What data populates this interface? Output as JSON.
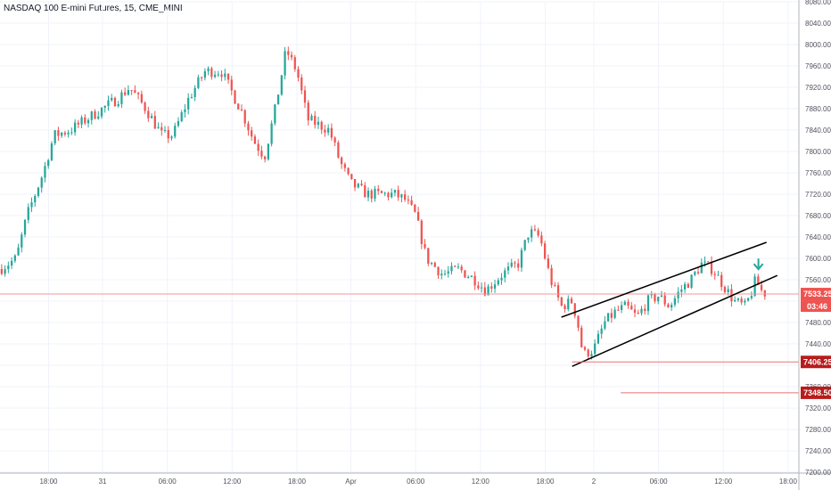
{
  "header": {
    "title": "NASDAQ 100 E-mini Futures, 15, CME_MINI"
  },
  "chart_data": {
    "type": "candlestick",
    "title": "NASDAQ 100 E-mini Futures, 15, CME_MINI",
    "ylim": [
      7200,
      8080
    ],
    "yticks": [
      7200,
      7240,
      7280,
      7320,
      7360,
      7400,
      7440,
      7480,
      7520,
      7560,
      7600,
      7640,
      7680,
      7720,
      7760,
      7800,
      7840,
      7880,
      7920,
      7960,
      8000,
      8040,
      8080
    ],
    "xlim": [
      0,
      148
    ],
    "xticks": [
      {
        "x": 9,
        "label": "18:00"
      },
      {
        "x": 19,
        "label": "31"
      },
      {
        "x": 31,
        "label": "06:00"
      },
      {
        "x": 43,
        "label": "12:00"
      },
      {
        "x": 55,
        "label": "18:00"
      },
      {
        "x": 65,
        "label": "Apr"
      },
      {
        "x": 77,
        "label": "06:00"
      },
      {
        "x": 89,
        "label": "12:00"
      },
      {
        "x": 101,
        "label": "18:00"
      },
      {
        "x": 110,
        "label": "2"
      },
      {
        "x": 122,
        "label": "06:00"
      },
      {
        "x": 134,
        "label": "12:00"
      },
      {
        "x": 146,
        "label": "18:00"
      }
    ],
    "path": [
      [
        0,
        7580
      ],
      [
        3,
        7600
      ],
      [
        5,
        7680
      ],
      [
        8,
        7760
      ],
      [
        10,
        7830
      ],
      [
        13,
        7840
      ],
      [
        16,
        7860
      ],
      [
        19,
        7880
      ],
      [
        22,
        7900
      ],
      [
        24,
        7920
      ],
      [
        27,
        7880
      ],
      [
        30,
        7830
      ],
      [
        32,
        7830
      ],
      [
        35,
        7900
      ],
      [
        38,
        7950
      ],
      [
        41,
        7950
      ],
      [
        43,
        7910
      ],
      [
        45,
        7870
      ],
      [
        47,
        7820
      ],
      [
        49,
        7790
      ],
      [
        51,
        7880
      ],
      [
        53,
        7990
      ],
      [
        55,
        7950
      ],
      [
        57,
        7860
      ],
      [
        59,
        7850
      ],
      [
        61,
        7840
      ],
      [
        63,
        7780
      ],
      [
        65,
        7740
      ],
      [
        68,
        7720
      ],
      [
        70,
        7720
      ],
      [
        73,
        7720
      ],
      [
        75,
        7710
      ],
      [
        77,
        7680
      ],
      [
        79,
        7600
      ],
      [
        82,
        7570
      ],
      [
        85,
        7580
      ],
      [
        88,
        7560
      ],
      [
        90,
        7540
      ],
      [
        93,
        7570
      ],
      [
        96,
        7590
      ],
      [
        98,
        7650
      ],
      [
        100,
        7640
      ],
      [
        102,
        7560
      ],
      [
        104,
        7510
      ],
      [
        106,
        7520
      ],
      [
        107,
        7480
      ],
      [
        108,
        7420
      ],
      [
        110,
        7430
      ],
      [
        112,
        7480
      ],
      [
        114,
        7500
      ],
      [
        116,
        7510
      ],
      [
        118,
        7490
      ],
      [
        120,
        7520
      ],
      [
        122,
        7530
      ],
      [
        124,
        7510
      ],
      [
        126,
        7540
      ],
      [
        128,
        7560
      ],
      [
        130,
        7590
      ],
      [
        132,
        7580
      ],
      [
        134,
        7550
      ],
      [
        136,
        7520
      ],
      [
        138,
        7510
      ],
      [
        139,
        7530
      ],
      [
        140,
        7560
      ],
      [
        141,
        7540
      ],
      [
        142,
        7533
      ]
    ],
    "channel": {
      "upper": {
        "from": [
          104,
          7490
        ],
        "to": [
          142,
          7630
        ]
      },
      "lower": {
        "from": [
          106,
          7398
        ],
        "to": [
          144,
          7568
        ]
      }
    },
    "horizontal_lines": [
      {
        "from_x": 106,
        "price": 7406.25,
        "label": "7406.25"
      },
      {
        "from_x": 115,
        "price": 7348.5,
        "label": "7348.50"
      }
    ],
    "current_price": {
      "value": 7533.25,
      "label": "7533.25",
      "countdown": "03:46"
    },
    "arrow": {
      "x": 140.5,
      "price": 7583
    },
    "colors": {
      "up": "#26a69a",
      "down": "#ef5350",
      "price_line": "#ef9a9a",
      "level_line": "#e57373",
      "tag": "#ef5350",
      "level_tag": "#b71c1c",
      "grid": "#f0f3fa",
      "arrow": "#26a69a"
    }
  }
}
